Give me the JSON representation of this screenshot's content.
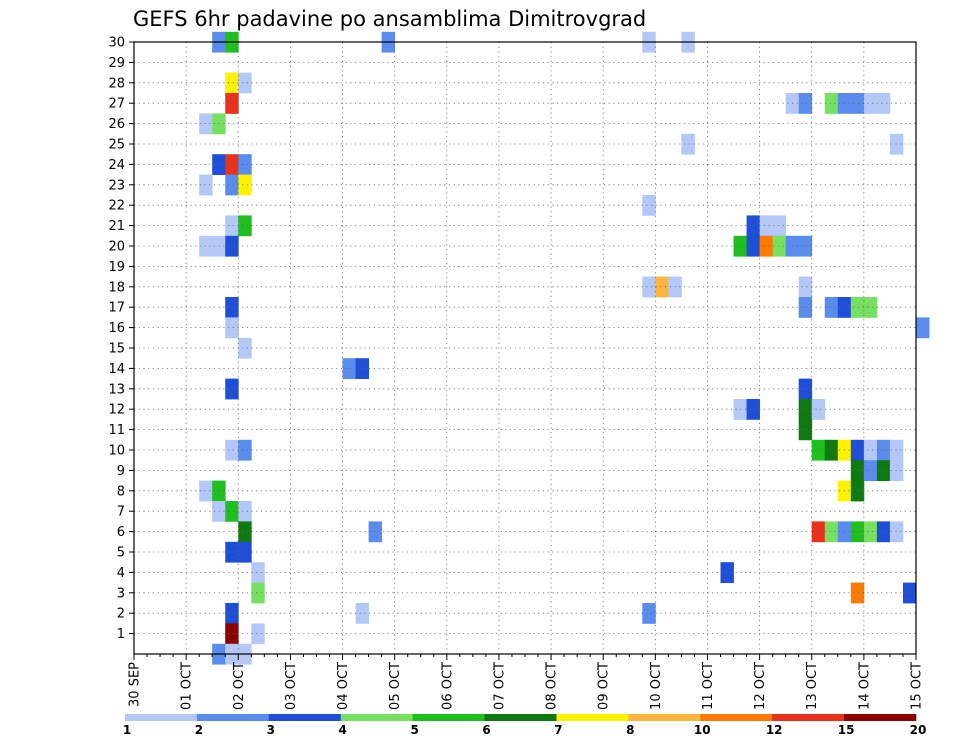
{
  "chart_data": {
    "type": "heatmap",
    "title": "GEFS 6hr padavine po ansamblima Dimitrovgrad",
    "xlabel": "",
    "ylabel": "",
    "x_tick_labels": [
      "30 SEP",
      "01 OCT",
      "02 OCT",
      "03 OCT",
      "04 OCT",
      "05 OCT",
      "06 OCT",
      "07 OCT",
      "08 OCT",
      "09 OCT",
      "10 OCT",
      "11 OCT",
      "12 OCT",
      "13 OCT",
      "14 OCT",
      "15 OCT"
    ],
    "x_range": [
      "30 SEP 00Z",
      "15 OCT 00Z"
    ],
    "x_step": "6hr",
    "y_tick_labels": [
      "1",
      "2",
      "3",
      "4",
      "5",
      "6",
      "7",
      "8",
      "9",
      "10",
      "11",
      "12",
      "13",
      "14",
      "15",
      "16",
      "17",
      "18",
      "19",
      "20",
      "21",
      "22",
      "23",
      "24",
      "25",
      "26",
      "27",
      "28",
      "29",
      "30"
    ],
    "y_range": [
      0,
      30
    ],
    "grid": true,
    "colorbar": {
      "placement": "bottom",
      "levels": [
        1,
        2,
        3,
        4,
        5,
        6,
        7,
        8,
        10,
        12,
        15,
        20
      ],
      "tick_labels": [
        "1",
        "2",
        "3",
        "4",
        "5",
        "6",
        "7",
        "8",
        "10",
        "12",
        "15",
        "20"
      ],
      "colors": [
        "#b4c8f8",
        "#5a8cee",
        "#1f4fd6",
        "#78e060",
        "#1fbf1f",
        "#0f7a0f",
        "#fff200",
        "#ffb53d",
        "#ff7a00",
        "#e8321e",
        "#8c0000"
      ]
    },
    "cells": [
      {
        "member": 30,
        "step": 6,
        "bin": 1
      },
      {
        "member": 30,
        "step": 7,
        "bin": 4
      },
      {
        "member": 30,
        "step": 19,
        "bin": 1
      },
      {
        "member": 30,
        "step": 39,
        "bin": 0
      },
      {
        "member": 30,
        "step": 42,
        "bin": 0
      },
      {
        "member": 28,
        "step": 7,
        "bin": 6
      },
      {
        "member": 28,
        "step": 8,
        "bin": 0
      },
      {
        "member": 27,
        "step": 7,
        "bin": 9
      },
      {
        "member": 27,
        "step": 50,
        "bin": 0
      },
      {
        "member": 27,
        "step": 51,
        "bin": 1
      },
      {
        "member": 27,
        "step": 53,
        "bin": 3
      },
      {
        "member": 27,
        "step": 54,
        "bin": 1
      },
      {
        "member": 27,
        "step": 55,
        "bin": 1
      },
      {
        "member": 27,
        "step": 56,
        "bin": 0
      },
      {
        "member": 27,
        "step": 57,
        "bin": 0
      },
      {
        "member": 26,
        "step": 5,
        "bin": 0
      },
      {
        "member": 26,
        "step": 6,
        "bin": 3
      },
      {
        "member": 25,
        "step": 42,
        "bin": 0
      },
      {
        "member": 25,
        "step": 58,
        "bin": 0
      },
      {
        "member": 24,
        "step": 6,
        "bin": 2
      },
      {
        "member": 24,
        "step": 7,
        "bin": 9
      },
      {
        "member": 24,
        "step": 8,
        "bin": 1
      },
      {
        "member": 23,
        "step": 5,
        "bin": 0
      },
      {
        "member": 23,
        "step": 7,
        "bin": 1
      },
      {
        "member": 23,
        "step": 8,
        "bin": 6
      },
      {
        "member": 22,
        "step": 39,
        "bin": 0
      },
      {
        "member": 21,
        "step": 7,
        "bin": 0
      },
      {
        "member": 21,
        "step": 8,
        "bin": 4
      },
      {
        "member": 21,
        "step": 47,
        "bin": 2
      },
      {
        "member": 21,
        "step": 48,
        "bin": 0
      },
      {
        "member": 21,
        "step": 49,
        "bin": 0
      },
      {
        "member": 20,
        "step": 5,
        "bin": 0
      },
      {
        "member": 20,
        "step": 6,
        "bin": 0
      },
      {
        "member": 20,
        "step": 7,
        "bin": 2
      },
      {
        "member": 20,
        "step": 46,
        "bin": 4
      },
      {
        "member": 20,
        "step": 47,
        "bin": 2
      },
      {
        "member": 20,
        "step": 48,
        "bin": 8
      },
      {
        "member": 20,
        "step": 49,
        "bin": 3
      },
      {
        "member": 20,
        "step": 50,
        "bin": 1
      },
      {
        "member": 20,
        "step": 51,
        "bin": 1
      },
      {
        "member": 18,
        "step": 39,
        "bin": 0
      },
      {
        "member": 18,
        "step": 40,
        "bin": 7
      },
      {
        "member": 18,
        "step": 41,
        "bin": 0
      },
      {
        "member": 18,
        "step": 51,
        "bin": 0
      },
      {
        "member": 17,
        "step": 7,
        "bin": 2
      },
      {
        "member": 17,
        "step": 51,
        "bin": 1
      },
      {
        "member": 17,
        "step": 53,
        "bin": 1
      },
      {
        "member": 17,
        "step": 54,
        "bin": 2
      },
      {
        "member": 17,
        "step": 55,
        "bin": 3
      },
      {
        "member": 17,
        "step": 56,
        "bin": 3
      },
      {
        "member": 16,
        "step": 7,
        "bin": 0
      },
      {
        "member": 16,
        "step": 60,
        "bin": 1
      },
      {
        "member": 15,
        "step": 8,
        "bin": 0
      },
      {
        "member": 14,
        "step": 16,
        "bin": 1
      },
      {
        "member": 14,
        "step": 17,
        "bin": 2
      },
      {
        "member": 13,
        "step": 7,
        "bin": 2
      },
      {
        "member": 13,
        "step": 51,
        "bin": 2
      },
      {
        "member": 12,
        "step": 46,
        "bin": 0
      },
      {
        "member": 12,
        "step": 47,
        "bin": 2
      },
      {
        "member": 12,
        "step": 51,
        "bin": 5
      },
      {
        "member": 12,
        "step": 52,
        "bin": 0
      },
      {
        "member": 11,
        "step": 51,
        "bin": 5
      },
      {
        "member": 10,
        "step": 7,
        "bin": 0
      },
      {
        "member": 10,
        "step": 8,
        "bin": 1
      },
      {
        "member": 10,
        "step": 52,
        "bin": 4
      },
      {
        "member": 10,
        "step": 53,
        "bin": 5
      },
      {
        "member": 10,
        "step": 54,
        "bin": 6
      },
      {
        "member": 10,
        "step": 55,
        "bin": 2
      },
      {
        "member": 10,
        "step": 56,
        "bin": 0
      },
      {
        "member": 10,
        "step": 57,
        "bin": 1
      },
      {
        "member": 10,
        "step": 58,
        "bin": 0
      },
      {
        "member": 9,
        "step": 55,
        "bin": 5
      },
      {
        "member": 9,
        "step": 56,
        "bin": 1
      },
      {
        "member": 9,
        "step": 57,
        "bin": 5
      },
      {
        "member": 9,
        "step": 58,
        "bin": 0
      },
      {
        "member": 8,
        "step": 5,
        "bin": 0
      },
      {
        "member": 8,
        "step": 6,
        "bin": 4
      },
      {
        "member": 8,
        "step": 54,
        "bin": 6
      },
      {
        "member": 8,
        "step": 55,
        "bin": 5
      },
      {
        "member": 7,
        "step": 6,
        "bin": 0
      },
      {
        "member": 7,
        "step": 7,
        "bin": 4
      },
      {
        "member": 7,
        "step": 8,
        "bin": 0
      },
      {
        "member": 6,
        "step": 8,
        "bin": 5
      },
      {
        "member": 6,
        "step": 18,
        "bin": 1
      },
      {
        "member": 6,
        "step": 52,
        "bin": 9
      },
      {
        "member": 6,
        "step": 53,
        "bin": 3
      },
      {
        "member": 6,
        "step": 54,
        "bin": 1
      },
      {
        "member": 6,
        "step": 55,
        "bin": 4
      },
      {
        "member": 6,
        "step": 56,
        "bin": 3
      },
      {
        "member": 6,
        "step": 57,
        "bin": 2
      },
      {
        "member": 6,
        "step": 58,
        "bin": 0
      },
      {
        "member": 5,
        "step": 7,
        "bin": 2
      },
      {
        "member": 5,
        "step": 8,
        "bin": 2
      },
      {
        "member": 4,
        "step": 9,
        "bin": 0
      },
      {
        "member": 4,
        "step": 45,
        "bin": 2
      },
      {
        "member": 3,
        "step": 9,
        "bin": 3
      },
      {
        "member": 3,
        "step": 55,
        "bin": 8
      },
      {
        "member": 3,
        "step": 59,
        "bin": 2
      },
      {
        "member": 2,
        "step": 7,
        "bin": 2
      },
      {
        "member": 2,
        "step": 17,
        "bin": 0
      },
      {
        "member": 2,
        "step": 39,
        "bin": 1
      },
      {
        "member": 1,
        "step": 7,
        "bin": 10
      },
      {
        "member": 1,
        "step": 9,
        "bin": 0
      },
      {
        "member": 0,
        "step": 6,
        "bin": 1
      },
      {
        "member": 0,
        "step": 7,
        "bin": 0
      },
      {
        "member": 0,
        "step": 8,
        "bin": 0
      }
    ]
  }
}
